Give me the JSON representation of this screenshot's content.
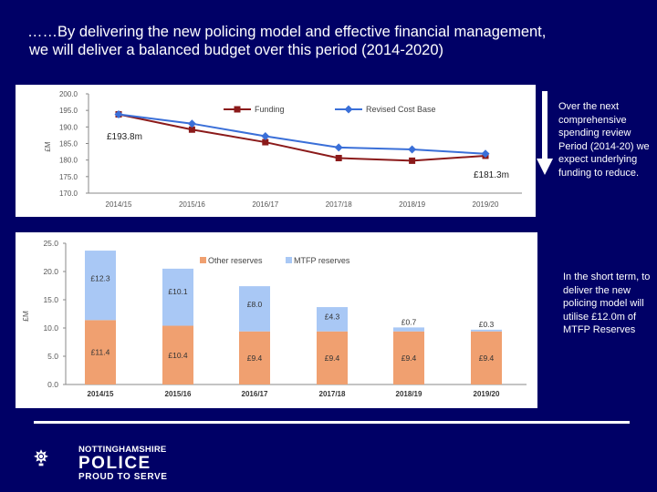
{
  "title": {
    "line1": "……By delivering the new policing model and effective financial management,",
    "line2": "we will deliver a balanced budget over this period (2014-2020)"
  },
  "notes": {
    "spending": "Over the next comprehensive spending review Period (2014-20) we expect underlying funding to reduce.",
    "reserves": "In the short term, to deliver the new policing model will utilise £12.0m of MTFP Reserves"
  },
  "brand": {
    "county": "NOTTINGHAMSHIRE",
    "police": "POLICE",
    "tagline": "PROUD TO SERVE"
  },
  "colors": {
    "background": "#000066",
    "funding": "#8b1a1a",
    "revised": "#3a6fd8",
    "other_reserves": "#f0a070",
    "mtfp_reserves": "#a9c8f5"
  },
  "chart_data": [
    {
      "type": "line",
      "title": "",
      "ylabel": "£M",
      "xlabel": "",
      "categories": [
        "2014/15",
        "2015/16",
        "2016/17",
        "2017/18",
        "2018/19",
        "2019/20"
      ],
      "y_ticks": [
        "170.0",
        "175.0",
        "180.0",
        "185.0",
        "190.0",
        "195.0",
        "200.0"
      ],
      "ylim": [
        170,
        200
      ],
      "series": [
        {
          "name": "Funding",
          "values": [
            193.8,
            189.2,
            185.4,
            180.6,
            179.8,
            181.3
          ]
        },
        {
          "name": "Revised Cost Base",
          "values": [
            193.8,
            191.0,
            187.2,
            183.8,
            183.2,
            181.9
          ]
        }
      ],
      "annotations": [
        {
          "label": "£193.8m",
          "category": "2014/15"
        },
        {
          "label": "£181.3m",
          "category": "2019/20"
        }
      ],
      "legend_position": "top-right"
    },
    {
      "type": "bar",
      "stacked": true,
      "ylabel": "£M",
      "xlabel": "",
      "categories": [
        "2014/15",
        "2015/16",
        "2016/17",
        "2017/18",
        "2018/19",
        "2019/20"
      ],
      "y_ticks": [
        "0.0",
        "5.0",
        "10.0",
        "15.0",
        "20.0",
        "25.0"
      ],
      "ylim": [
        0,
        25
      ],
      "series": [
        {
          "name": "Other reserves",
          "values": [
            11.4,
            10.4,
            9.4,
            9.4,
            9.4,
            9.4
          ],
          "labels": [
            "£11.4",
            "£10.4",
            "£9.4",
            "£9.4",
            "£9.4",
            "£9.4"
          ]
        },
        {
          "name": "MTFP reserves",
          "values": [
            12.3,
            10.1,
            8.0,
            4.3,
            0.7,
            0.3
          ],
          "labels": [
            "£12.3",
            "£10.1",
            "£8.0",
            "£4.3",
            "£0.7",
            "£0.3"
          ]
        }
      ],
      "legend_position": "top-center"
    }
  ]
}
